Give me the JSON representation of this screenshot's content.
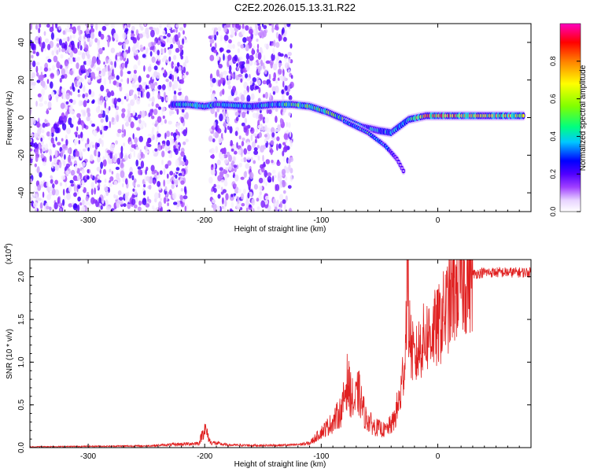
{
  "title": "C2E2.2026.015.13.31.R22",
  "chart_data": [
    {
      "type": "heatmap",
      "xlabel": "Height of straight line (km)",
      "ylabel": "Frequency (Hz)",
      "xlim": [
        -350,
        80
      ],
      "ylim": [
        -50,
        50
      ],
      "xticks": [
        -300,
        -200,
        -100,
        0
      ],
      "yticks": [
        -40,
        -20,
        0,
        20,
        40
      ],
      "colorbar": {
        "label": "Normalized spectral amplitude",
        "range": [
          0,
          1
        ],
        "ticks": [
          "0.0",
          "0.2",
          "0.4",
          "0.6",
          "0.8"
        ],
        "tick_values": [
          0.0,
          0.2,
          0.4,
          0.6,
          0.8
        ],
        "colors": [
          "#ffffff",
          "#e8d4ff",
          "#a040ff",
          "#5000ff",
          "#0000ff",
          "#00c8ff",
          "#00ff80",
          "#80ff00",
          "#ffff00",
          "#ff8000",
          "#ff0000",
          "#ff00c0"
        ]
      },
      "noise_regions_km": [
        [
          -350,
          -215
        ],
        [
          -195,
          -125
        ]
      ],
      "signal_track": [
        {
          "x": -228,
          "y": 7,
          "amp": 0.45
        },
        {
          "x": -215,
          "y": 7,
          "amp": 0.55
        },
        {
          "x": -200,
          "y": 6,
          "amp": 0.6
        },
        {
          "x": -190,
          "y": 7,
          "amp": 0.5
        },
        {
          "x": -160,
          "y": 6,
          "amp": 0.45
        },
        {
          "x": -140,
          "y": 7,
          "amp": 0.5
        },
        {
          "x": -125,
          "y": 7,
          "amp": 0.6
        },
        {
          "x": -110,
          "y": 6,
          "amp": 0.65
        },
        {
          "x": -95,
          "y": 3,
          "amp": 0.6
        },
        {
          "x": -80,
          "y": -1,
          "amp": 0.55
        },
        {
          "x": -65,
          "y": -5,
          "amp": 0.5
        },
        {
          "x": -50,
          "y": -7,
          "amp": 0.45
        },
        {
          "x": -40,
          "y": -8,
          "amp": 0.45
        },
        {
          "x": -25,
          "y": -1,
          "amp": 0.55
        },
        {
          "x": -10,
          "y": 1,
          "amp": 0.8
        },
        {
          "x": 10,
          "y": 1,
          "amp": 0.85
        },
        {
          "x": 40,
          "y": 1,
          "amp": 0.75
        },
        {
          "x": 75,
          "y": 1,
          "amp": 0.7
        }
      ],
      "branch_track": [
        {
          "x": -80,
          "y": -2,
          "amp": 0.5
        },
        {
          "x": -60,
          "y": -8,
          "amp": 0.55
        },
        {
          "x": -45,
          "y": -15,
          "amp": 0.5
        },
        {
          "x": -35,
          "y": -22,
          "amp": 0.15
        },
        {
          "x": -28,
          "y": -30,
          "amp": 0.1
        }
      ]
    },
    {
      "type": "line",
      "xlabel": "Height of straight line (km)",
      "ylabel": "SNR (10 * v/v)",
      "multiplier": "(x10",
      "multiplier_exp": "4",
      "multiplier_close": ")",
      "xlim": [
        -350,
        80
      ],
      "ylim": [
        0,
        22000
      ],
      "xticks": [
        -300,
        -200,
        -100,
        0
      ],
      "yticks": [
        "0.0",
        "0.5",
        "1.0",
        "1.5",
        "2.0"
      ],
      "ytick_values": [
        0,
        5000,
        10000,
        15000,
        20000
      ],
      "series": [
        {
          "name": "SNR",
          "color": "#e02020",
          "x": [
            -350,
            -300,
            -250,
            -205,
            -200,
            -195,
            -180,
            -150,
            -125,
            -110,
            -100,
            -90,
            -82,
            -78,
            -75,
            -72,
            -68,
            -62,
            -55,
            -45,
            -38,
            -32,
            -28,
            -26,
            -25,
            -23,
            -20,
            -15,
            -10,
            -5,
            0,
            5,
            10,
            15,
            20,
            25,
            30,
            40,
            50,
            60,
            70,
            80
          ],
          "y": [
            100,
            150,
            200,
            500,
            2300,
            600,
            300,
            250,
            300,
            500,
            1800,
            3000,
            4500,
            7800,
            6500,
            5000,
            6500,
            3500,
            2500,
            2000,
            3000,
            6000,
            10500,
            22000,
            15000,
            12000,
            10000,
            12000,
            13000,
            13500,
            14000,
            15500,
            17000,
            18500,
            19500,
            20000,
            20300,
            20500,
            20500,
            20500,
            20500,
            20500
          ]
        }
      ]
    }
  ]
}
